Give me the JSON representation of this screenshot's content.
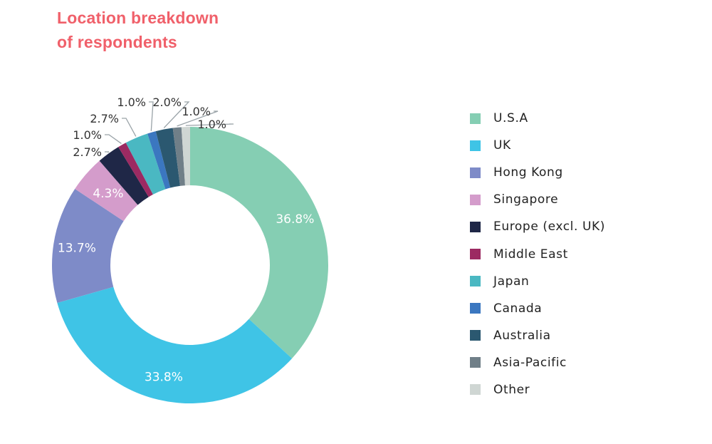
{
  "title_lines": [
    "Location breakdown",
    "of respondents"
  ],
  "chart_data": {
    "type": "pie",
    "title": "Location breakdown of respondents",
    "donut": true,
    "slices": [
      {
        "label": "U.S.A",
        "value": 36.8,
        "value_label": "36.8%",
        "color": "#85ceb3"
      },
      {
        "label": "UK",
        "value": 33.8,
        "value_label": "33.8%",
        "color": "#3fc4e6"
      },
      {
        "label": "Hong Kong",
        "value": 13.7,
        "value_label": "13.7%",
        "color": "#7e8bc8"
      },
      {
        "label": "Singapore",
        "value": 4.3,
        "value_label": "4.3%",
        "color": "#d49ccb"
      },
      {
        "label": "Europe (excl. UK)",
        "value": 2.7,
        "value_label": "2.7%",
        "color": "#1f2747"
      },
      {
        "label": "Middle East",
        "value": 1.0,
        "value_label": "1.0%",
        "color": "#9c2a62"
      },
      {
        "label": "Japan",
        "value": 2.7,
        "value_label": "2.7%",
        "color": "#4ab8c2"
      },
      {
        "label": "Canada",
        "value": 1.0,
        "value_label": "1.0%",
        "color": "#3b77c0"
      },
      {
        "label": "Australia",
        "value": 2.0,
        "value_label": "2.0%",
        "color": "#2b5870"
      },
      {
        "label": "Asia-Pacific",
        "value": 1.0,
        "value_label": "1.0%",
        "color": "#707f88"
      },
      {
        "label": "Other",
        "value": 1.0,
        "value_label": "1.0%",
        "color": "#cfd6d3"
      }
    ],
    "legend_position": "right"
  }
}
